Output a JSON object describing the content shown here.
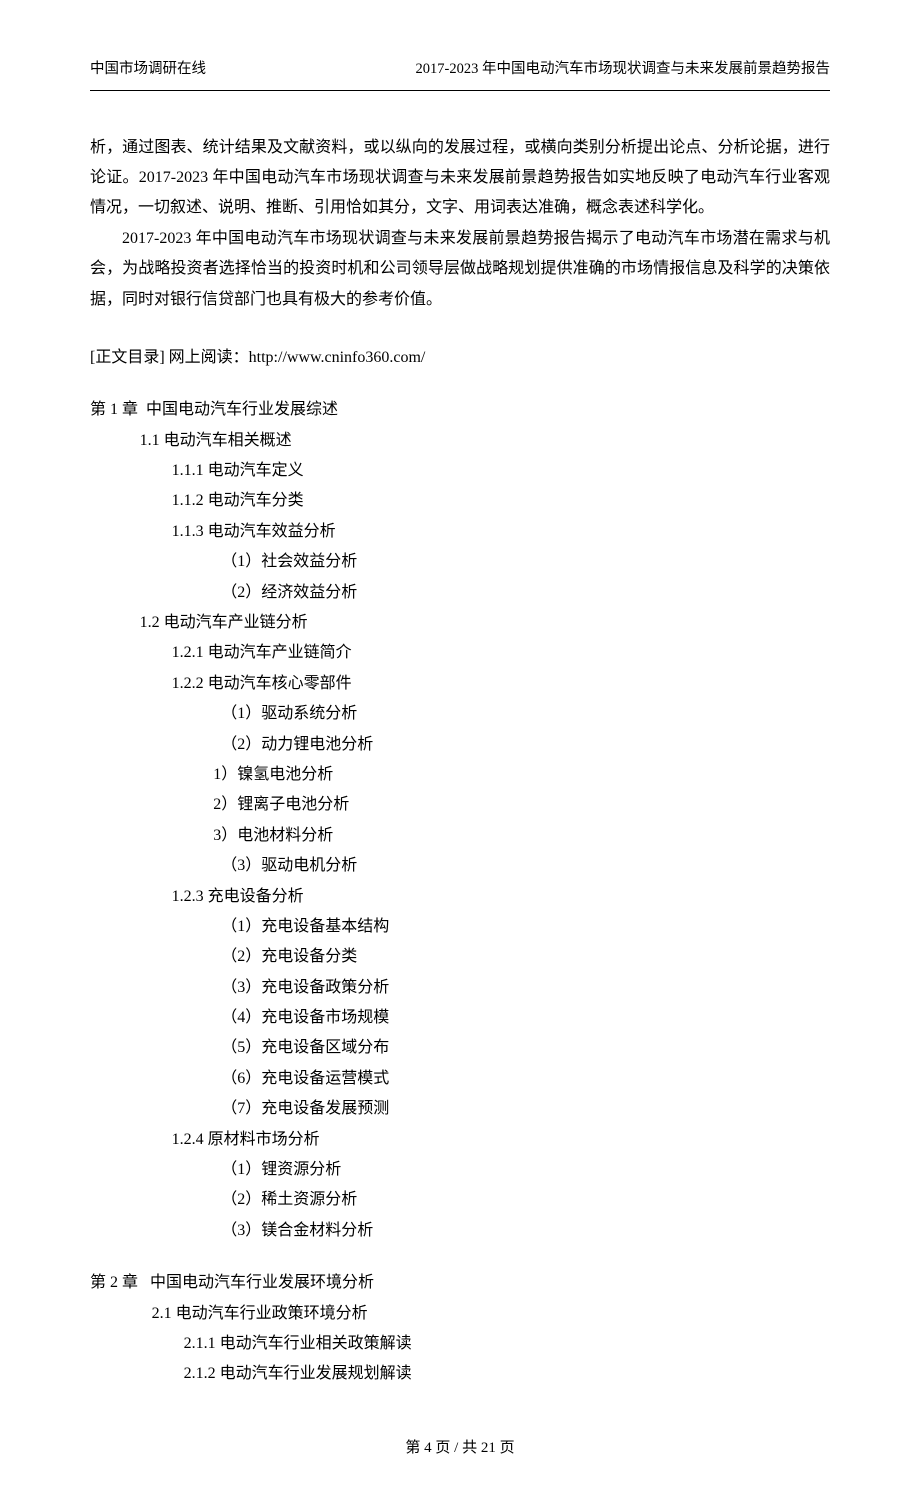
{
  "header": {
    "left": "中国市场调研在线",
    "right": "2017-2023 年中国电动汽车市场现状调查与未来发展前景趋势报告"
  },
  "paragraphs": {
    "p1": "析，通过图表、统计结果及文献资料，或以纵向的发展过程，或横向类别分析提出论点、分析论据，进行论证。2017-2023 年中国电动汽车市场现状调查与未来发展前景趋势报告如实地反映了电动汽车行业客观情况，一切叙述、说明、推断、引用恰如其分，文字、用词表达准确，概念表述科学化。",
    "p2": "2017-2023 年中国电动汽车市场现状调查与未来发展前景趋势报告揭示了电动汽车市场潜在需求与机会，为战略投资者选择恰当的投资时机和公司领导层做战略规划提供准确的市场情报信息及科学的决策依据，同时对银行信贷部门也具有极大的参考价值。"
  },
  "toc_link": "[正文目录] 网上阅读：http://www.cninfo360.com/",
  "toc": [
    {
      "lvl": 0,
      "gap": true,
      "text": "第 1 章  中国电动汽车行业发展综述"
    },
    {
      "lvl": 1,
      "text": "1.1 电动汽车相关概述"
    },
    {
      "lvl": 2,
      "text": "1.1.1 电动汽车定义"
    },
    {
      "lvl": 2,
      "text": "1.1.2 电动汽车分类"
    },
    {
      "lvl": 2,
      "text": "1.1.3 电动汽车效益分析"
    },
    {
      "lvl": 3,
      "text": "（1）社会效益分析"
    },
    {
      "lvl": 3,
      "text": "（2）经济效益分析"
    },
    {
      "lvl": 1,
      "text": "1.2 电动汽车产业链分析"
    },
    {
      "lvl": 2,
      "text": "1.2.1 电动汽车产业链简介"
    },
    {
      "lvl": 2,
      "text": "1.2.2 电动汽车核心零部件"
    },
    {
      "lvl": 3,
      "text": "（1）驱动系统分析"
    },
    {
      "lvl": 3,
      "text": "（2）动力锂电池分析"
    },
    {
      "lvl": "3b",
      "text": "1）镍氢电池分析"
    },
    {
      "lvl": "3b",
      "text": "2）锂离子电池分析"
    },
    {
      "lvl": "3b",
      "text": "3）电池材料分析"
    },
    {
      "lvl": 3,
      "text": "（3）驱动电机分析"
    },
    {
      "lvl": 2,
      "text": "1.2.3 充电设备分析"
    },
    {
      "lvl": 3,
      "text": "（1）充电设备基本结构"
    },
    {
      "lvl": 3,
      "text": "（2）充电设备分类"
    },
    {
      "lvl": 3,
      "text": "（3）充电设备政策分析"
    },
    {
      "lvl": 3,
      "text": "（4）充电设备市场规模"
    },
    {
      "lvl": 3,
      "text": "（5）充电设备区域分布"
    },
    {
      "lvl": 3,
      "text": "（6）充电设备运营模式"
    },
    {
      "lvl": 3,
      "text": "（7）充电设备发展预测"
    },
    {
      "lvl": 2,
      "text": "1.2.4 原材料市场分析"
    },
    {
      "lvl": 3,
      "text": "（1）锂资源分析"
    },
    {
      "lvl": 3,
      "text": "（2）稀土资源分析"
    },
    {
      "lvl": 3,
      "text": "（3）镁合金材料分析"
    },
    {
      "lvl": 0,
      "gap": true,
      "text": "第 2 章   中国电动汽车行业发展环境分析"
    },
    {
      "lvl": 1,
      "pad": "   ",
      "text": "2.1 电动汽车行业政策环境分析"
    },
    {
      "lvl": 2,
      "pad": "   ",
      "text": "2.1.1 电动汽车行业相关政策解读"
    },
    {
      "lvl": 2,
      "pad": "   ",
      "text": "2.1.2 电动汽车行业发展规划解读"
    }
  ],
  "footer": "第 4 页 / 共 21 页"
}
